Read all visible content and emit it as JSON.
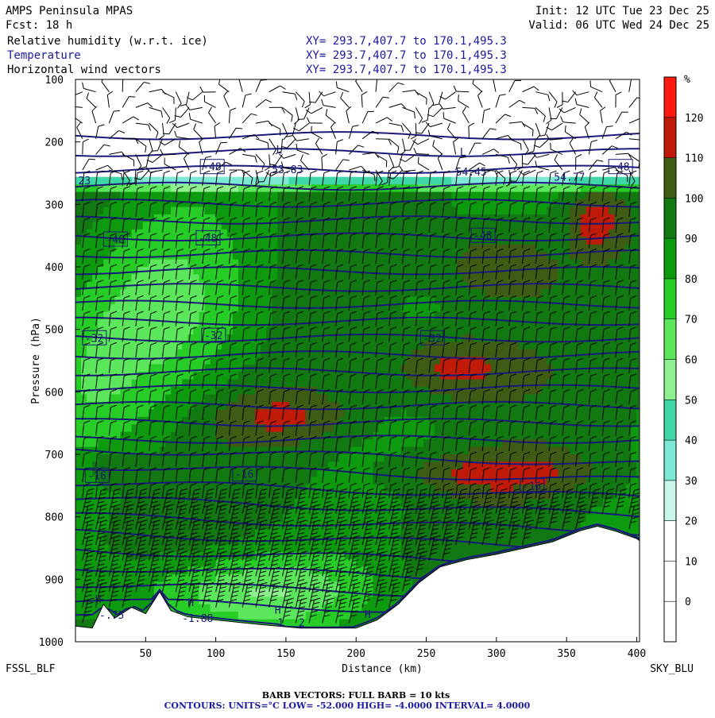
{
  "header": {
    "model": "AMPS Peninsula MPAS",
    "init": "Init: 12 UTC Tue 23 Dec 25",
    "forecast": "Fcst:   18 h",
    "valid": "Valid: 06 UTC Wed 24 Dec 25",
    "fields": [
      {
        "name": "Relative humidity (w.r.t. ice)",
        "xy": "XY= 293.7,407.7 to 170.1,495.3",
        "color": "#000000"
      },
      {
        "name": "Temperature",
        "xy": "XY= 293.7,407.7 to 170.1,495.3",
        "color": "#1a1aa0"
      },
      {
        "name": "Horizontal wind vectors",
        "xy": "XY= 293.7,407.7 to 170.1,495.3",
        "color": "#000000"
      }
    ]
  },
  "footer": {
    "start_point": "FSSL_BLF",
    "end_point": "SKY_BLU",
    "barb_note": "BARB VECTORS:  FULL BARB = 10 kts",
    "contours_note": "CONTOURS:  UNITS=°C  LOW= -52.000       HIGH= -4.0000       INTERVAL=   4.0000"
  },
  "chart_data": {
    "type": "heatmap",
    "xlabel": "Distance (km)",
    "ylabel": "Pressure (hPa)",
    "xlim": [
      0,
      402
    ],
    "ylim": [
      1000,
      100
    ],
    "x_ticks": [
      50,
      100,
      150,
      200,
      250,
      300,
      350,
      400
    ],
    "y_ticks": [
      100,
      200,
      300,
      400,
      500,
      600,
      700,
      800,
      900,
      1000
    ],
    "colorbar": {
      "unit": "%",
      "levels": [
        0,
        10,
        20,
        30,
        40,
        50,
        60,
        70,
        80,
        90,
        100,
        110,
        120
      ],
      "colors": [
        "#ffffff",
        "#ffffff",
        "#ffffff",
        "#c8f5ea",
        "#7de8d4",
        "#3fd6a8",
        "#8ef08e",
        "#5ce65c",
        "#27cc27",
        "#0e9a0e",
        "#127812",
        "#3f5c14",
        "#c01a08",
        "#ff1a10"
      ]
    },
    "terrain_surface": [
      [
        0,
        975
      ],
      [
        12,
        978
      ],
      [
        20,
        940
      ],
      [
        28,
        962
      ],
      [
        40,
        945
      ],
      [
        50,
        955
      ],
      [
        60,
        920
      ],
      [
        68,
        950
      ],
      [
        80,
        960
      ],
      [
        100,
        965
      ],
      [
        130,
        972
      ],
      [
        160,
        978
      ],
      [
        200,
        978
      ],
      [
        215,
        965
      ],
      [
        230,
        940
      ],
      [
        245,
        905
      ],
      [
        260,
        880
      ],
      [
        280,
        868
      ],
      [
        300,
        860
      ],
      [
        320,
        850
      ],
      [
        340,
        840
      ],
      [
        360,
        822
      ],
      [
        372,
        815
      ],
      [
        385,
        823
      ],
      [
        400,
        835
      ],
      [
        402,
        838
      ]
    ],
    "temperature_labels": [
      {
        "text": "-48",
        "x": 89,
        "p": 242
      },
      {
        "text": "-48",
        "x": 380,
        "p": 242
      },
      {
        "text": "-48",
        "x": 20,
        "p": 358
      },
      {
        "text": "-48",
        "x": 86,
        "p": 356
      },
      {
        "text": "-48",
        "x": 282,
        "p": 352
      },
      {
        "text": "-32",
        "x": 5,
        "p": 516
      },
      {
        "text": "-32",
        "x": 90,
        "p": 512
      },
      {
        "text": "-32",
        "x": 246,
        "p": 516
      },
      {
        "text": "-16",
        "x": 7,
        "p": 736
      },
      {
        "text": "-16",
        "x": 112,
        "p": 734
      },
      {
        "text": "-16",
        "x": 317,
        "p": 753
      }
    ],
    "extrema_labels": [
      {
        "text": "L",
        "x": 143,
        "p": 218
      },
      {
        "text": "53.83",
        "x": 140,
        "p": 250
      },
      {
        "text": "L",
        "x": 274,
        "p": 222
      },
      {
        "text": "54.45",
        "x": 271,
        "p": 254
      },
      {
        "text": "54.77",
        "x": 341,
        "p": 262
      },
      {
        "text": "23",
        "x": 2,
        "p": 268
      },
      {
        "text": "H",
        "x": 14,
        "p": 938
      },
      {
        "text": "-.75",
        "x": 17,
        "p": 963
      },
      {
        "text": "H",
        "x": 80,
        "p": 943
      },
      {
        "text": "-1.88",
        "x": 76,
        "p": 968
      },
      {
        "text": "H",
        "x": 142,
        "p": 955
      },
      {
        "text": "1",
        "x": 144,
        "p": 975
      },
      {
        "text": "2",
        "x": 159,
        "p": 975
      },
      {
        "text": "H",
        "x": 206,
        "p": 962
      }
    ]
  }
}
